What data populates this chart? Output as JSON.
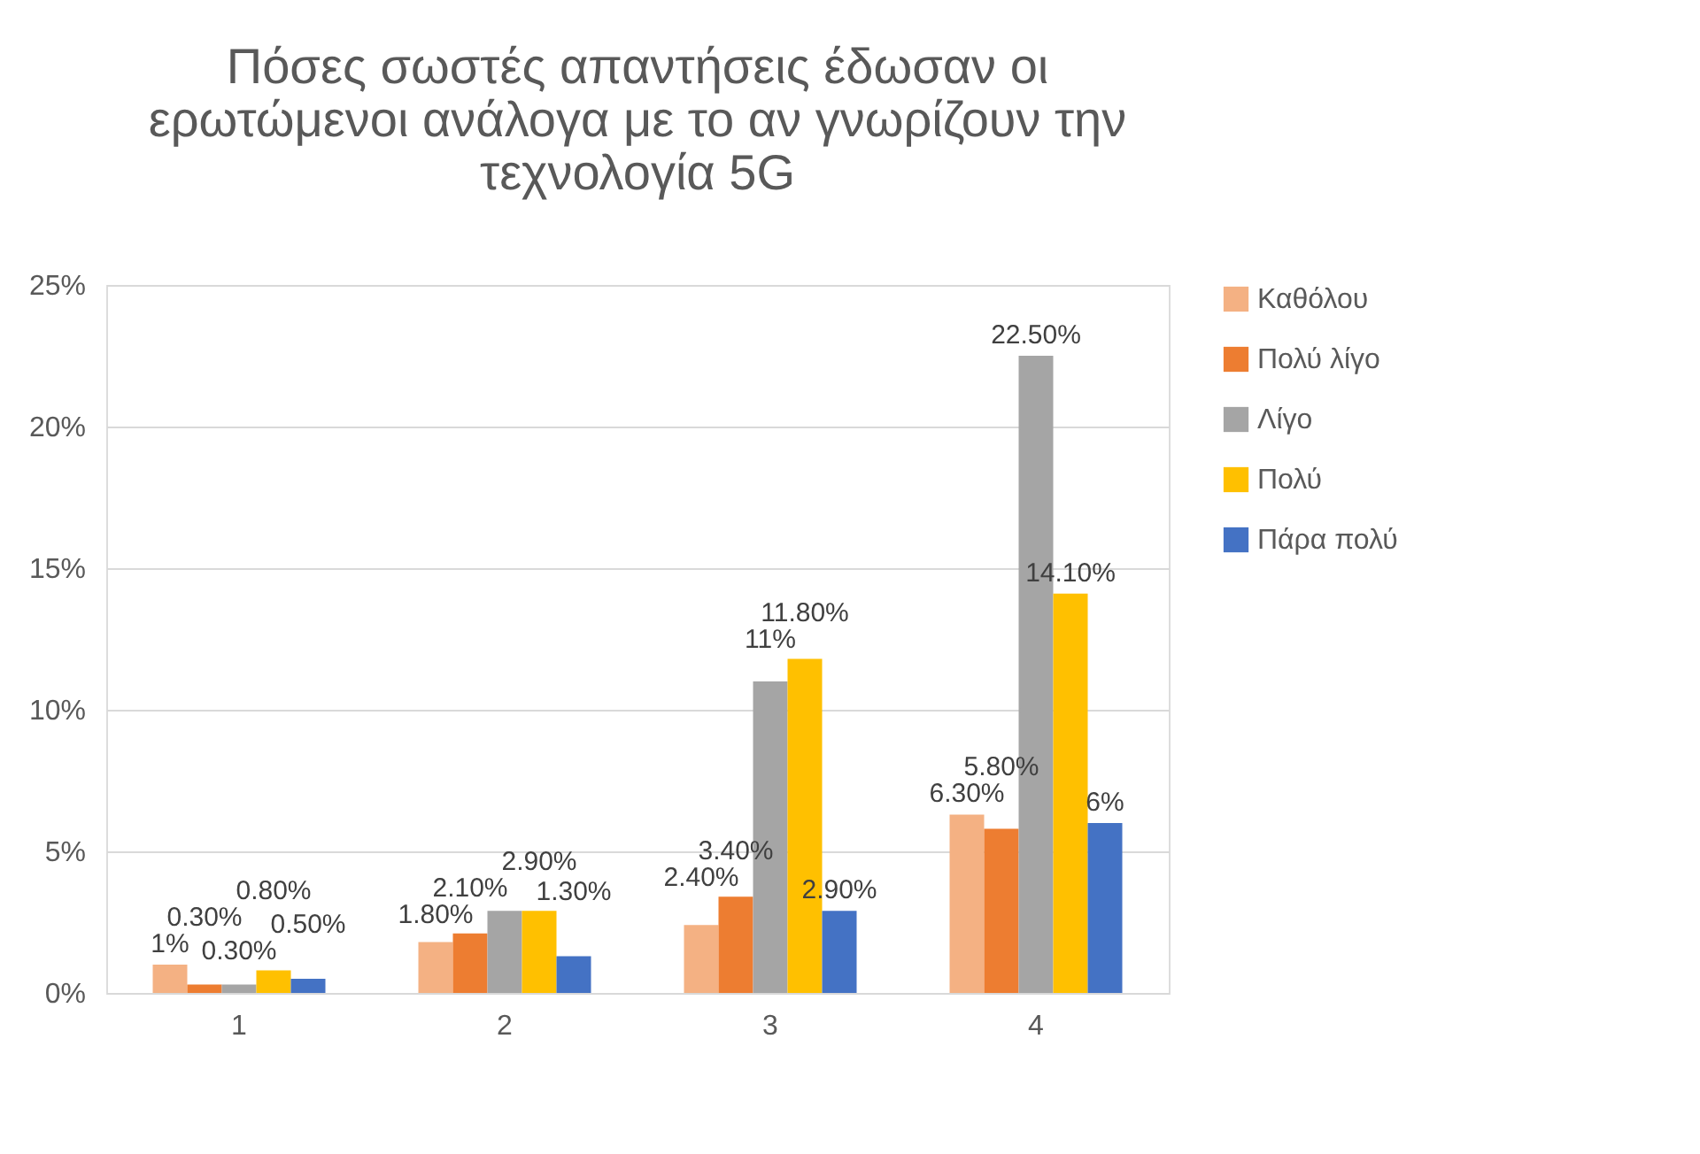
{
  "chart_data": {
    "type": "bar",
    "title": [
      "Πόσες σωστές απαντήσεις έδωσαν οι",
      "ερωτώμενοι ανάλογα με το αν γνωρίζουν την",
      "τεχνολογία 5G"
    ],
    "categories": [
      "1",
      "2",
      "3",
      "4"
    ],
    "series": [
      {
        "name": "Καθόλου",
        "color": "#f4b183",
        "values": [
          1,
          1.8,
          2.4,
          6.3
        ],
        "value_labels": [
          "1%",
          "1.80%",
          "2.40%",
          "6.30%"
        ]
      },
      {
        "name": "Πολύ λίγο",
        "color": "#ed7d31",
        "values": [
          0.3,
          2.1,
          3.4,
          5.8
        ],
        "value_labels": [
          "0.30%",
          "2.10%",
          "3.40%",
          "5.80%"
        ]
      },
      {
        "name": "Λίγο",
        "color": "#a5a5a5",
        "values": [
          0.3,
          2.9,
          11,
          22.5
        ],
        "value_labels": [
          "0.30%",
          null,
          "11%",
          "22.50%"
        ]
      },
      {
        "name": "Πολύ",
        "color": "#ffc000",
        "values": [
          0.8,
          2.9,
          11.8,
          14.1
        ],
        "value_labels": [
          "0.80%",
          "2.90%",
          "11.80%",
          "14.10%"
        ]
      },
      {
        "name": "Πάρα πολύ",
        "color": "#4472c4",
        "values": [
          0.5,
          1.3,
          2.9,
          6
        ],
        "value_labels": [
          "0.50%",
          "1.30%",
          "2.90%",
          "6%"
        ]
      }
    ],
    "ylim": [
      0,
      25
    ],
    "yticks": [
      {
        "value": 0,
        "label": "0%"
      },
      {
        "value": 5,
        "label": "5%"
      },
      {
        "value": 10,
        "label": "10%"
      },
      {
        "value": 15,
        "label": "15%"
      },
      {
        "value": 20,
        "label": "20%"
      },
      {
        "value": 25,
        "label": "25%"
      }
    ],
    "grid": "y",
    "legend": "right"
  }
}
